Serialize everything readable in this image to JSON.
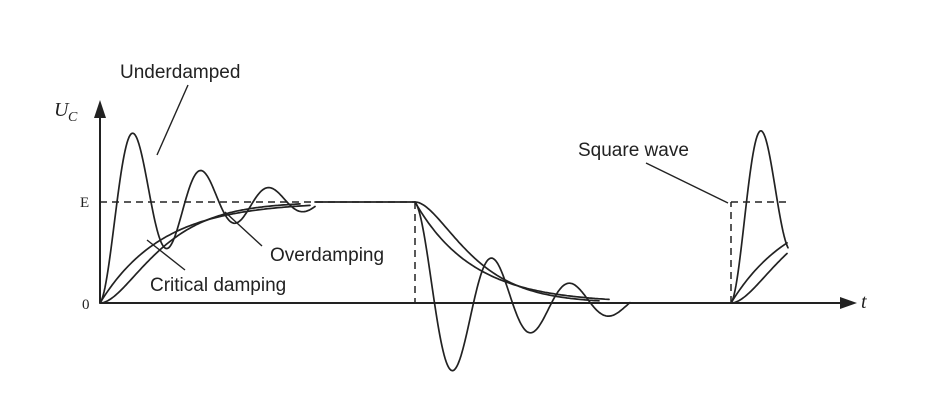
{
  "labels": {
    "underdamped": "Underdamped",
    "overdamping": "Overdamping",
    "critical_damping": "Critical damping",
    "square_wave": "Square wave"
  },
  "axes": {
    "y_symbol": "U",
    "y_subscript": "C",
    "x_symbol": "t",
    "level_e": "E",
    "origin": "0"
  }
}
